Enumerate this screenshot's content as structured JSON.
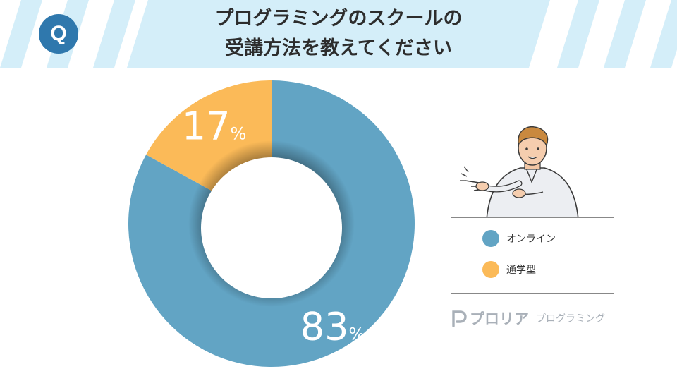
{
  "header": {
    "title_line1": "プログラミングのスクールの",
    "title_line2": "受講方法を教えてください",
    "badge_label": "Q"
  },
  "chart_data": {
    "type": "pie",
    "donut": true,
    "categories": [
      "オンライン",
      "通学型"
    ],
    "values": [
      83,
      17
    ],
    "unit": "%",
    "colors": [
      "#62a4c4",
      "#fbba58"
    ],
    "legend_position": "right"
  },
  "legend": {
    "items": [
      {
        "label": "オンライン",
        "color": "#62a4c4"
      },
      {
        "label": "通学型",
        "color": "#fbba58"
      }
    ]
  },
  "brand": {
    "name": "プロリア",
    "sub": "プログラミング"
  },
  "colors": {
    "header_band": "#d4eef9",
    "accent": "#2f78ad"
  },
  "icons": {
    "badge": "q-badge-icon",
    "illustration": "pointing-man-illustration",
    "brand_logo": "proria-logo-icon"
  }
}
